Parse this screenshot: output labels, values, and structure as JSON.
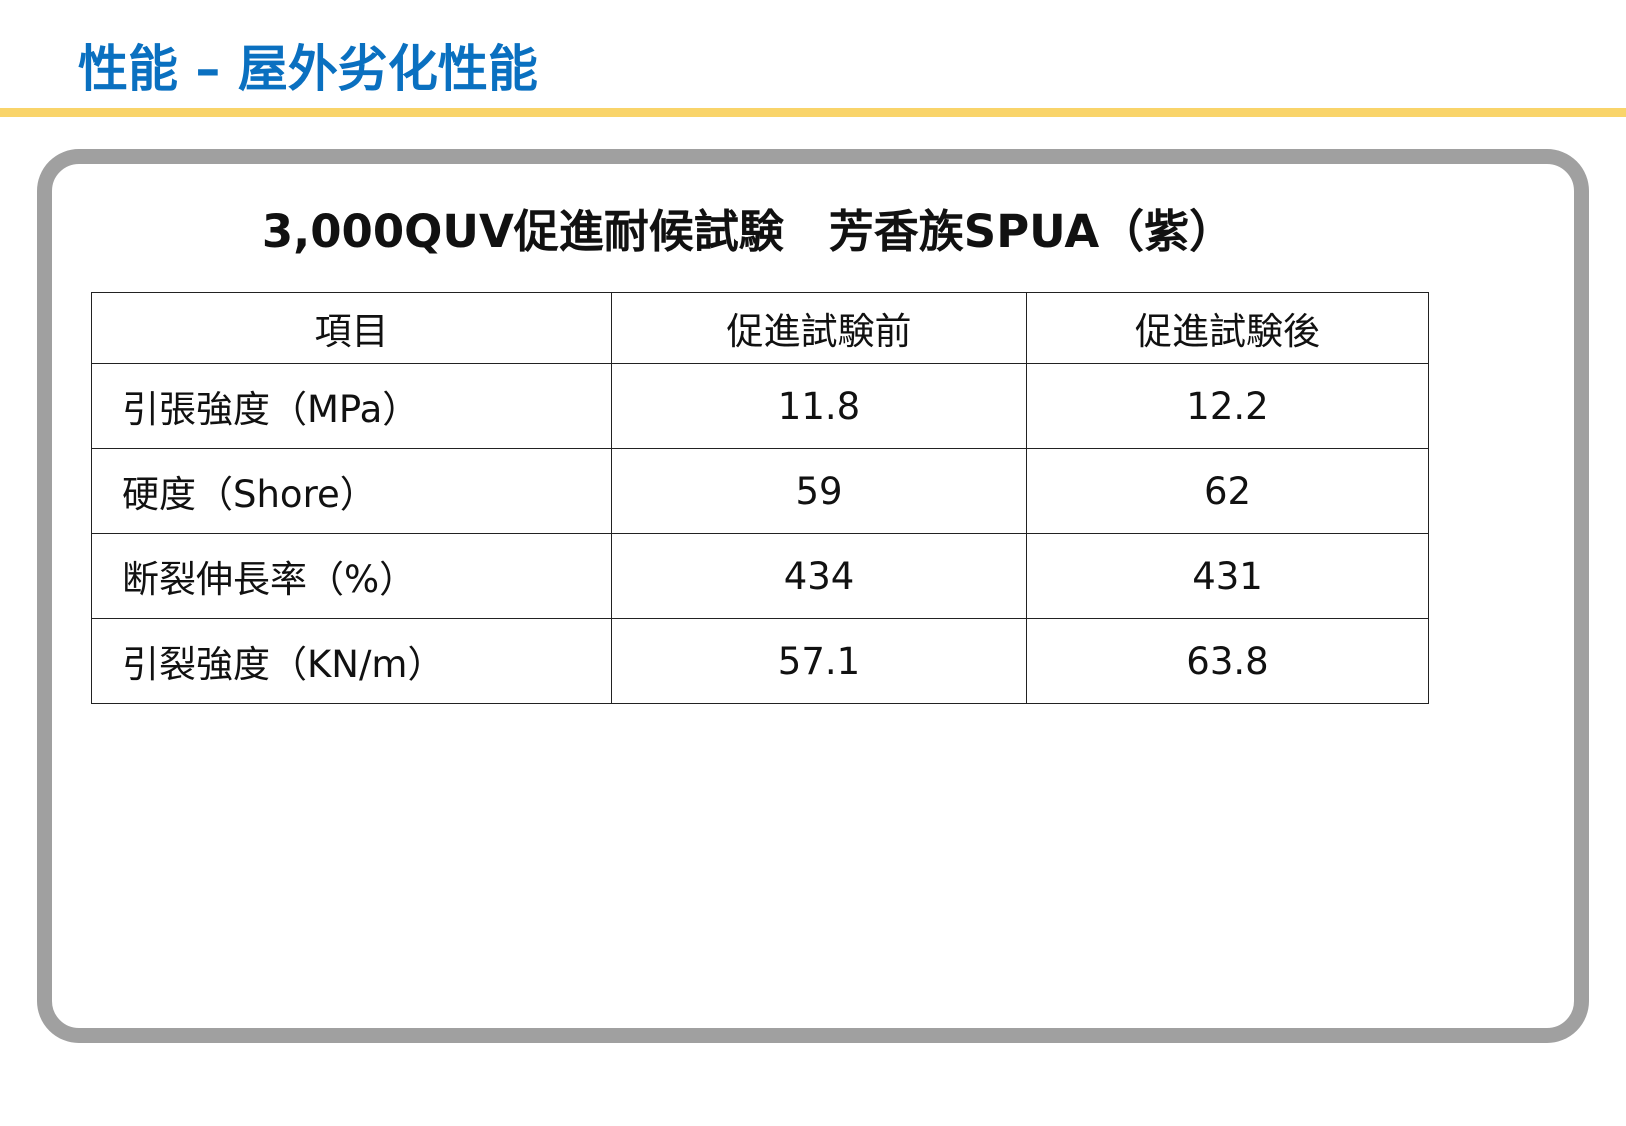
{
  "header": {
    "title": "性能 – 屋外劣化性能"
  },
  "panel": {
    "heading": "3,000QUV促進耐候試験　芳香族SPUA（紫）"
  },
  "table": {
    "headers": [
      "項目",
      "促進試験前",
      "促進試験後"
    ],
    "rows": [
      [
        "引張強度（MPa）",
        "11.8",
        "12.2"
      ],
      [
        "硬度（Shore）",
        "59",
        "62"
      ],
      [
        "断裂伸長率（%）",
        "434",
        "431"
      ],
      [
        "引裂強度（KN/m）",
        "57.1",
        "63.8"
      ]
    ]
  }
}
